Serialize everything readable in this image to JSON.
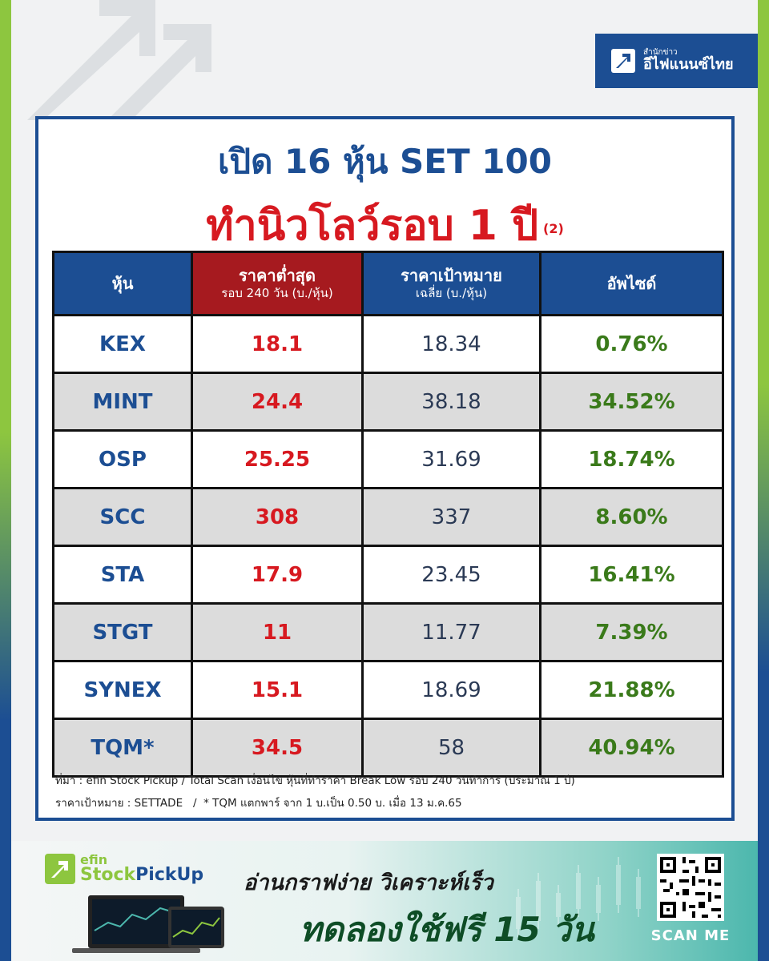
{
  "brand": {
    "small": "สำนักข่าว",
    "name": "อีไฟแนนซ์ไทย"
  },
  "title": {
    "line1": "เปิด 16 หุ้น SET 100",
    "line2": "ทำนิวโลว์รอบ 1 ปี",
    "part": "(2)"
  },
  "table": {
    "headers": [
      {
        "main": "หุ้น",
        "sub": ""
      },
      {
        "main": "ราคาต่ำสุด",
        "sub": "รอบ 240 วัน (บ./หุ้น)"
      },
      {
        "main": "ราคาเป้าหมาย",
        "sub": "เฉลี่ย (บ./หุ้น)"
      },
      {
        "main": "อัพไซด์",
        "sub": ""
      }
    ],
    "rows": [
      {
        "symbol": "KEX",
        "low": "18.1",
        "target": "18.34",
        "upside": "0.76%"
      },
      {
        "symbol": "MINT",
        "low": "24.4",
        "target": "38.18",
        "upside": "34.52%"
      },
      {
        "symbol": "OSP",
        "low": "25.25",
        "target": "31.69",
        "upside": "18.74%"
      },
      {
        "symbol": "SCC",
        "low": "308",
        "target": "337",
        "upside": "8.60%"
      },
      {
        "symbol": "STA",
        "low": "17.9",
        "target": "23.45",
        "upside": "16.41%"
      },
      {
        "symbol": "STGT",
        "low": "11",
        "target": "11.77",
        "upside": "7.39%"
      },
      {
        "symbol": "SYNEX",
        "low": "15.1",
        "target": "18.69",
        "upside": "21.88%"
      },
      {
        "symbol": "TQM*",
        "low": "34.5",
        "target": "58",
        "upside": "40.94%"
      }
    ]
  },
  "notes": {
    "line1": "ที่มา : efin Stock Pickup / Total Scan เงื่อนไข หุ้นที่ทำราคา Break Low รอบ 240 วันทำการ (ประมาณ 1 ปี)",
    "line2": "ราคาเป้าหมาย : SETTADE   /  * TQM แตกพาร์ จาก 1 บ.เป็น 0.50 บ. เมื่อ 13 ม.ค.65"
  },
  "banner": {
    "logo_e": "efin",
    "logo_stock": "Stock",
    "logo_pickup": "PickUp",
    "tagline1": "อ่านกราฟง่าย วิเคราะห์เร็ว",
    "tagline2": "ทดลองใช้ฟรี 15 วัน",
    "scan": "SCAN ME"
  },
  "colors": {
    "brand_blue": "#1c4e93",
    "brand_green": "#8dc63f",
    "low_red": "#d71920",
    "upside_green": "#3a7a1a"
  }
}
